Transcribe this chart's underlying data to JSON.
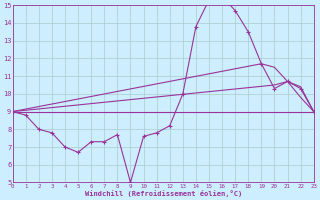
{
  "xlabel": "Windchill (Refroidissement éolien,°C)",
  "bg_color": "#cceeff",
  "grid_color": "#aacccc",
  "line_color": "#993399",
  "xlim": [
    0,
    23
  ],
  "ylim": [
    5,
    15
  ],
  "xticks": [
    0,
    1,
    2,
    3,
    4,
    5,
    6,
    7,
    8,
    9,
    10,
    11,
    12,
    13,
    14,
    15,
    16,
    17,
    18,
    19,
    20,
    21,
    22,
    23
  ],
  "yticks": [
    5,
    6,
    7,
    8,
    9,
    10,
    11,
    12,
    13,
    14,
    15
  ],
  "line1_x": [
    0,
    1,
    2,
    3,
    4,
    5,
    6,
    7,
    8,
    9,
    10,
    11,
    12,
    13,
    14,
    15,
    16,
    17,
    18,
    19,
    20,
    21,
    22,
    23
  ],
  "line1_y": [
    9.0,
    8.8,
    8.0,
    7.8,
    7.0,
    6.7,
    7.3,
    7.3,
    7.7,
    5.0,
    7.6,
    7.8,
    8.2,
    10.0,
    13.8,
    15.3,
    15.5,
    14.7,
    13.5,
    11.7,
    10.3,
    10.7,
    10.3,
    9.0
  ],
  "line2_x": [
    0,
    23
  ],
  "line2_y": [
    9.0,
    9.0
  ],
  "line3_x": [
    0,
    20,
    21,
    22,
    23
  ],
  "line3_y": [
    9.0,
    10.5,
    10.7,
    10.4,
    9.0
  ],
  "line4_x": [
    0,
    19,
    20,
    21,
    22,
    23
  ],
  "line4_y": [
    9.0,
    11.7,
    11.5,
    10.7,
    9.8,
    9.0
  ]
}
